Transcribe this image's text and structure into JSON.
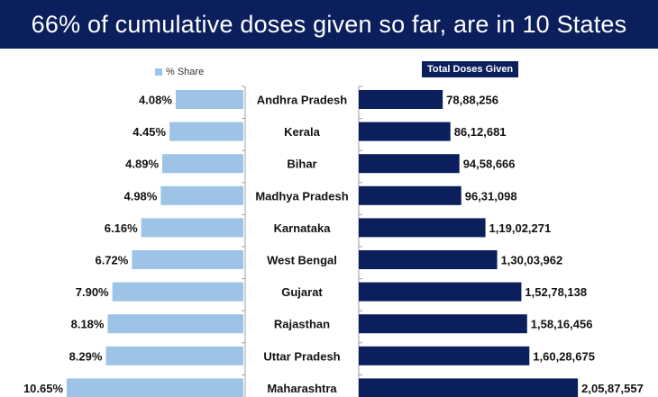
{
  "title": "66% of cumulative doses given so far, are in 10 States",
  "legend": {
    "share_label": "% Share",
    "doses_label": "Total Doses Given"
  },
  "colors": {
    "banner": "#0a1f5c",
    "share_bar": "#9dc3e6",
    "doses_bar": "#0a1f5c"
  },
  "chart_data": {
    "type": "bar",
    "title": "66% of cumulative doses given so far, are in 10 States",
    "categories": [
      "Andhra Pradesh",
      "Kerala",
      "Bihar",
      "Madhya Pradesh",
      "Karnataka",
      "West Bengal",
      "Gujarat",
      "Rajasthan",
      "Uttar Pradesh",
      "Maharashtra"
    ],
    "series": [
      {
        "name": "% Share",
        "values": [
          4.08,
          4.45,
          4.89,
          4.98,
          6.16,
          6.72,
          7.9,
          8.18,
          8.29,
          10.65
        ],
        "labels": [
          "4.08%",
          "4.45%",
          "4.89%",
          "4.98%",
          "6.16%",
          "6.72%",
          "7.90%",
          "8.18%",
          "8.29%",
          "10.65%"
        ]
      },
      {
        "name": "Total Doses Given",
        "values": [
          7888256,
          8612681,
          9458666,
          9631098,
          11902271,
          13003962,
          15278138,
          15816456,
          16028675,
          20587557
        ],
        "labels": [
          "78,88,256",
          "86,12,681",
          "94,58,666",
          "96,31,098",
          "1,19,02,271",
          "1,30,03,962",
          "1,52,78,138",
          "1,58,16,456",
          "1,60,28,675",
          "2,05,87,557"
        ]
      }
    ]
  }
}
